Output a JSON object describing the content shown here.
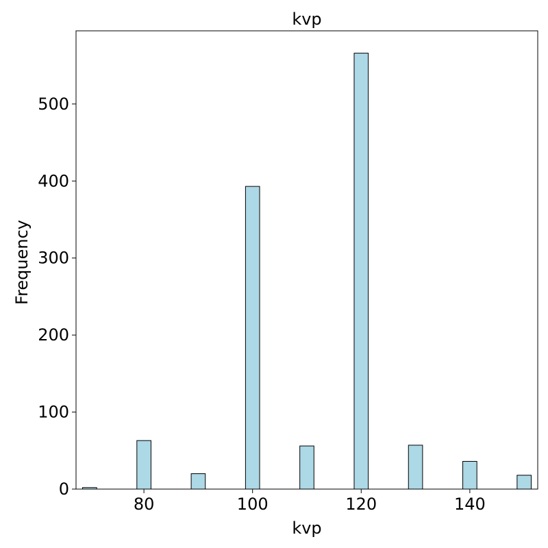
{
  "chart_data": {
    "type": "bar",
    "title": "kvp",
    "xlabel": "kvp",
    "ylabel": "Frequency",
    "xlim": [
      67.5,
      152.5
    ],
    "ylim": [
      0,
      595
    ],
    "xticks": [
      80,
      100,
      120,
      140
    ],
    "yticks": [
      0,
      100,
      200,
      300,
      400,
      500
    ],
    "bin_width": 2.6,
    "bins": [
      {
        "x": 70,
        "value": 2
      },
      {
        "x": 80,
        "value": 63
      },
      {
        "x": 90,
        "value": 20
      },
      {
        "x": 100,
        "value": 393
      },
      {
        "x": 110,
        "value": 56
      },
      {
        "x": 120,
        "value": 566
      },
      {
        "x": 130,
        "value": 57
      },
      {
        "x": 140,
        "value": 36
      },
      {
        "x": 150,
        "value": 18
      }
    ],
    "bar_color": "#add8e6",
    "edge_color": "#000000",
    "grid": false
  }
}
